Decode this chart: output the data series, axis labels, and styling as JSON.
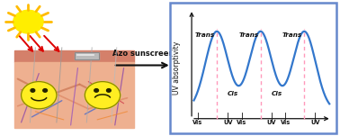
{
  "chart_border_color": "#6688cc",
  "chart_border_lw": 1.8,
  "wave_color": "#3377cc",
  "wave_lw": 1.6,
  "dashed_color": "#ff99bb",
  "dashed_lw": 1.0,
  "ylabel": "UV absorptivity",
  "xlabel_labels": [
    "Vis",
    "UV",
    "Vis",
    "UV",
    "Vis",
    "UV"
  ],
  "axis_color": "#111111",
  "text_color": "#111111",
  "arrow_color": "#111111",
  "arrow_label": "Azo sunscreens",
  "sun_color": "#ffee00",
  "sun_ray_color": "#dd0000",
  "sun_spoke_color": "#ffbb00",
  "skin_top_color": "#e8a080",
  "skin_body_color": "#e8b090",
  "skin_dark_color": "#d07060",
  "face_color": "#ffee22",
  "face_border": "#888800",
  "eye_color": "#222200",
  "mouth_color": "#222200",
  "patch_color": "#bbbbbb",
  "patch_border": "#888888",
  "vein_colors": [
    "#cc7755",
    "#bb6644",
    "#cc7755",
    "#bb6644",
    "#9955aa",
    "#8844aa",
    "#9966bb",
    "#cc5544",
    "#dd6655",
    "#3366cc",
    "#4477cc"
  ],
  "hair_colors": [
    "#aaaaaa",
    "#999999",
    "#bbbbbb"
  ],
  "figsize": [
    3.78,
    1.51
  ],
  "dpi": 100,
  "sigma": 0.52,
  "peak_centers": [
    1.05,
    3.05,
    5.05
  ],
  "x_range": [
    -0.1,
    6.3
  ],
  "y_range": [
    -0.12,
    1.28
  ]
}
